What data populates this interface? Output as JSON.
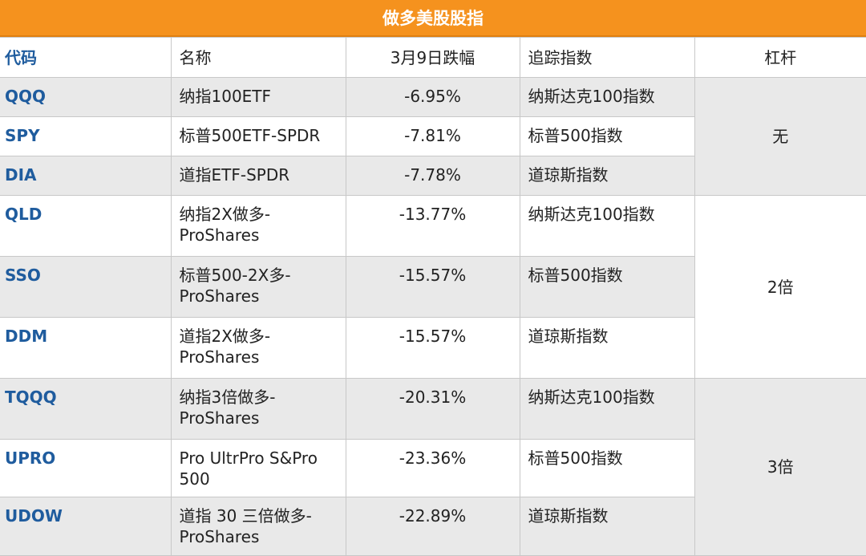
{
  "title": "做多美股股指",
  "headers": {
    "code": "代码",
    "name": "名称",
    "change": "3月9日跌幅",
    "index": "追踪指数",
    "leverage": "杠杆"
  },
  "rows": [
    {
      "code": "QQQ",
      "name": "纳指100ETF",
      "change": "-6.95%",
      "index": "纳斯达克100指数"
    },
    {
      "code": "SPY",
      "name": "标普500ETF-SPDR",
      "change": "-7.81%",
      "index": "标普500指数"
    },
    {
      "code": "DIA",
      "name": "道指ETF-SPDR",
      "change": "-7.78%",
      "index": "道琼斯指数"
    },
    {
      "code": "QLD",
      "name": "纳指2X做多-ProShares",
      "change": "-13.77%",
      "index": "纳斯达克100指数"
    },
    {
      "code": "SSO",
      "name": "标普500-2X多-ProShares",
      "change": "-15.57%",
      "index": "标普500指数"
    },
    {
      "code": "DDM",
      "name": "道指2X做多-ProShares",
      "change": "-15.57%",
      "index": "道琼斯指数"
    },
    {
      "code": "TQQQ",
      "name": "纳指3倍做多-ProShares",
      "change": "-20.31%",
      "index": "纳斯达克100指数"
    },
    {
      "code": "UPRO",
      "name": "Pro UltrPro S&Pro 500",
      "change": "-23.36%",
      "index": "标普500指数"
    },
    {
      "code": "UDOW",
      "name": "道指 30 三倍做多-ProShares",
      "change": "-22.89%",
      "index": "道琼斯指数"
    }
  ],
  "leverage_groups": [
    "无",
    "2倍",
    "3倍"
  ]
}
